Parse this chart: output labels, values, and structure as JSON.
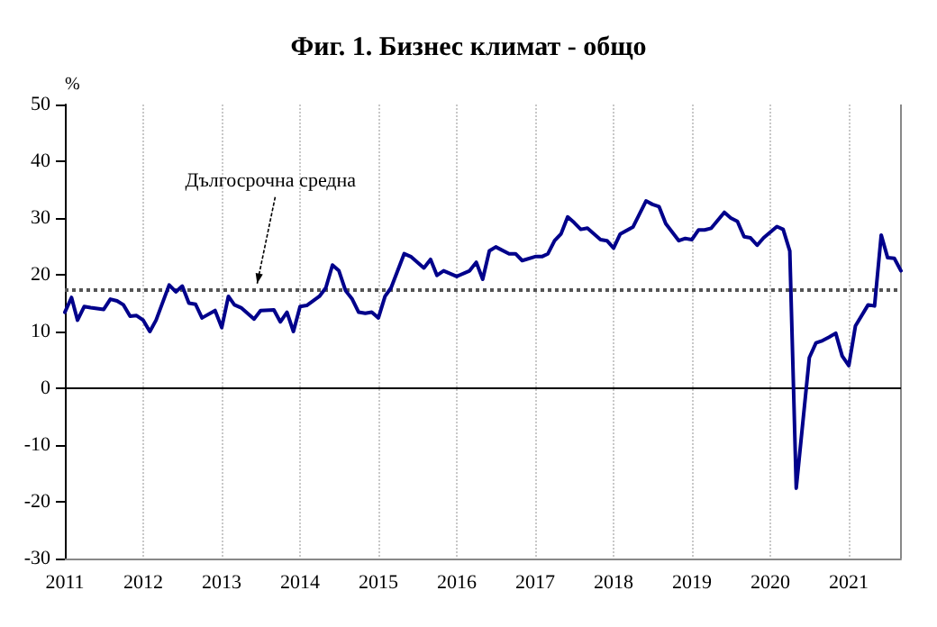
{
  "chart_data": {
    "type": "line",
    "title": "Фиг. 1. Бизнес климат - общо",
    "ylabel": "%",
    "x": [
      "2011-01",
      "2011-02",
      "2011-03",
      "2011-04",
      "2011-05",
      "2011-07",
      "2011-08",
      "2011-09",
      "2011-10",
      "2011-11",
      "2011-12",
      "2012-01",
      "2012-02",
      "2012-03",
      "2012-05",
      "2012-06",
      "2012-07",
      "2012-08",
      "2012-09",
      "2012-10",
      "2012-12",
      "2013-01",
      "2013-02",
      "2013-03",
      "2013-04",
      "2013-06",
      "2013-07",
      "2013-09",
      "2013-10",
      "2013-11",
      "2013-12",
      "2014-01",
      "2014-02",
      "2014-04",
      "2014-05",
      "2014-06",
      "2014-07",
      "2014-08",
      "2014-09",
      "2014-10",
      "2014-11",
      "2014-12",
      "2015-01",
      "2015-02",
      "2015-03",
      "2015-05",
      "2015-06",
      "2015-08",
      "2015-09",
      "2015-10",
      "2015-11",
      "2016-01",
      "2016-03",
      "2016-04",
      "2016-05",
      "2016-06",
      "2016-07",
      "2016-09",
      "2016-10",
      "2016-11",
      "2017-01",
      "2017-02",
      "2017-03",
      "2017-04",
      "2017-05",
      "2017-06",
      "2017-07",
      "2017-08",
      "2017-09",
      "2017-11",
      "2017-12",
      "2018-01",
      "2018-02",
      "2018-04",
      "2018-06",
      "2018-07",
      "2018-08",
      "2018-09",
      "2018-11",
      "2018-12",
      "2019-01",
      "2019-02",
      "2019-03",
      "2019-04",
      "2019-06",
      "2019-07",
      "2019-08",
      "2019-09",
      "2019-10",
      "2019-11",
      "2019-12",
      "2020-02",
      "2020-03",
      "2020-04",
      "2020-05",
      "2020-07",
      "2020-08",
      "2020-09",
      "2020-10",
      "2020-11",
      "2020-12",
      "2021-01",
      "2021-02",
      "2021-04",
      "2021-05",
      "2021-06",
      "2021-07",
      "2021-08",
      "2021-09"
    ],
    "series": [
      {
        "color": "#00008b",
        "values": [
          13.4,
          16,
          12,
          14.4,
          14.2,
          13.9,
          15.7,
          15.4,
          14.7,
          12.7,
          12.8,
          12,
          10,
          12,
          18.2,
          17,
          18,
          15,
          14.8,
          12.4,
          13.7,
          10.7,
          16.2,
          14.7,
          14.2,
          12.2,
          13.7,
          13.8,
          11.7,
          13.4,
          10,
          14.4,
          14.6,
          16.2,
          17.7,
          21.7,
          20.7,
          17.2,
          15.7,
          13.4,
          13.2,
          13.4,
          12.4,
          16.2,
          17.7,
          23.7,
          23.2,
          21.2,
          22.7,
          19.9,
          20.7,
          19.7,
          20.7,
          22.2,
          19.2,
          24.2,
          24.9,
          23.7,
          23.7,
          22.5,
          23.2,
          23.2,
          23.7,
          26,
          27.2,
          30.2,
          29.2,
          28,
          28.2,
          26.2,
          26,
          24.7,
          27.2,
          28.4,
          33,
          32.4,
          32,
          29,
          26,
          26.4,
          26.2,
          27.9,
          27.9,
          28.2,
          31,
          30,
          29.4,
          26.7,
          26.5,
          25.2,
          26.5,
          28.5,
          28,
          24.2,
          -17.6,
          5.4,
          8,
          8.4,
          9,
          9.7,
          5.7,
          4,
          11,
          14.7,
          14.5,
          27,
          23,
          22.9,
          20.7
        ]
      }
    ],
    "xlim": [
      "2011-01",
      "2021-09"
    ],
    "xticks": [
      {
        "value": "2011",
        "label": "2011"
      },
      {
        "value": "2012",
        "label": "2012"
      },
      {
        "value": "2013",
        "label": "2013"
      },
      {
        "value": "2014",
        "label": "2014"
      },
      {
        "value": "2015",
        "label": "2015"
      },
      {
        "value": "2016",
        "label": "2016"
      },
      {
        "value": "2017",
        "label": "2017"
      },
      {
        "value": "2018",
        "label": "2018"
      },
      {
        "value": "2019",
        "label": "2019"
      },
      {
        "value": "2020",
        "label": "2020"
      },
      {
        "value": "2021",
        "label": "2021"
      }
    ],
    "ylim": [
      -30,
      50
    ],
    "yticks": [
      -30,
      -20,
      -10,
      0,
      10,
      20,
      30,
      40,
      50
    ],
    "ref_lines": [
      {
        "axis": "y",
        "value": 17.5,
        "label": "Дългосрочна средна",
        "color": "#555555",
        "line_style": "dotted"
      },
      {
        "axis": "y",
        "value": 0,
        "color": "#000000",
        "line_style": "solid"
      }
    ],
    "grid": "x",
    "marker": "none",
    "line_style": "solid"
  }
}
